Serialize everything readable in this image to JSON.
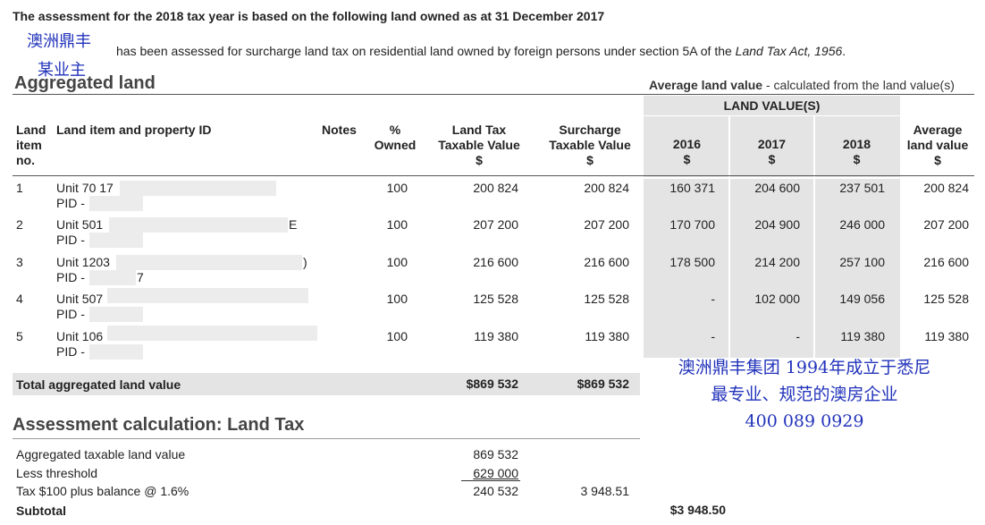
{
  "document": {
    "intro": "The assessment for the 2018 tax year is based on the following land owned as at 31 December 2017",
    "owner_name": "澳洲鼎丰",
    "owner_name2": "某业主",
    "surcharge_text_plain": "has been assessed for surcharge land tax on residential land owned by foreign persons under section 5A of the ",
    "surcharge_text_act": "Land Tax Act, 1956",
    "surcharge_text_end": "."
  },
  "aggregated": {
    "title": "Aggregated land",
    "avg_note_bold": "Average land value",
    "avg_note_rest": " - calculated from the land value(s)",
    "land_values_header": "LAND VALUE(S)",
    "columns": {
      "land_no": [
        "Land",
        "item",
        "no."
      ],
      "item": "Land item and property ID",
      "notes": "Notes",
      "owned": [
        "%",
        "Owned"
      ],
      "taxable": [
        "Land Tax",
        "Taxable Value",
        "$"
      ],
      "surcharge": [
        "Surcharge",
        "Taxable Value",
        "$"
      ],
      "y2016": [
        "2016",
        "$"
      ],
      "y2017": [
        "2017",
        "$"
      ],
      "y2018": [
        "2018",
        "$"
      ],
      "average": [
        "Average",
        "land value",
        "$"
      ]
    },
    "rows": [
      {
        "no": "1",
        "unit": "Unit 70 17",
        "pid": "PID -",
        "owned": "100",
        "taxable": "200 824",
        "surcharge": "200 824",
        "v2016": "160 371",
        "v2017": "204 600",
        "v2018": "237 501",
        "average": "200 824"
      },
      {
        "no": "2",
        "unit": "Unit 501",
        "unit_tail": "E",
        "pid": "PID -",
        "owned": "100",
        "taxable": "207 200",
        "surcharge": "207 200",
        "v2016": "170 700",
        "v2017": "204 900",
        "v2018": "246 000",
        "average": "207 200"
      },
      {
        "no": "3",
        "unit": "Unit 1203",
        "unit_tail": ")",
        "pid": "PID -",
        "pid_tail": "7",
        "owned": "100",
        "taxable": "216 600",
        "surcharge": "216 600",
        "v2016": "178 500",
        "v2017": "214 200",
        "v2018": "257 100",
        "average": "216 600"
      },
      {
        "no": "4",
        "unit": "Unit 507",
        "pid": "PID -",
        "owned": "100",
        "taxable": "125 528",
        "surcharge": "125 528",
        "v2016": "-",
        "v2017": "102 000",
        "v2018": "149 056",
        "average": "125 528"
      },
      {
        "no": "5",
        "unit": "Unit 106",
        "pid": "PID -",
        "owned": "100",
        "taxable": "119 380",
        "surcharge": "119 380",
        "v2016": "-",
        "v2017": "-",
        "v2018": "119 380",
        "average": "119 380"
      }
    ],
    "total_label": "Total aggregated land value",
    "total_taxable": "$869 532",
    "total_surcharge": "$869 532"
  },
  "calculation": {
    "title": "Assessment calculation: Land Tax",
    "rows": [
      {
        "label": "Aggregated taxable land value",
        "value": "869 532",
        "amount": ""
      },
      {
        "label": "Less threshold",
        "value": "629 000",
        "amount": ""
      },
      {
        "label": "Tax $100 plus balance @ 1.6%",
        "value": "240 532",
        "amount": "3 948.51"
      }
    ],
    "subtotal_label": "Subtotal",
    "subtotal_value": "$3 948.50"
  },
  "advert": {
    "line1": "澳洲鼎丰集团 1994年成立于悉尼",
    "line2": "最专业、规范的澳房企业",
    "phone": "400 089 0929"
  }
}
